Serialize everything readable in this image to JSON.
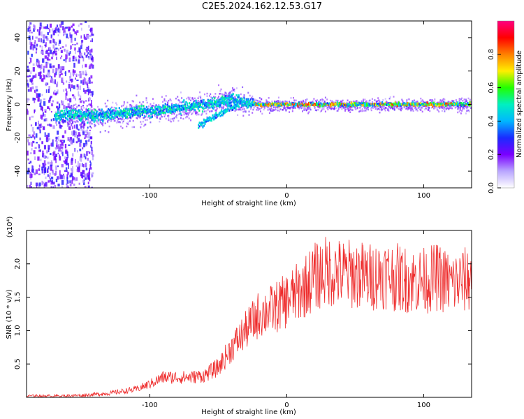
{
  "figure": {
    "title": "C2E5.2024.162.12.53.G17"
  },
  "colors": {
    "snr_line": "#ee2b2b",
    "colormap": [
      "#ffffff",
      "#b9a6ff",
      "#7a00ff",
      "#1a2bff",
      "#00b7ff",
      "#00f0c0",
      "#22ff00",
      "#ffee00",
      "#ff8000",
      "#ff0000",
      "#ff0080"
    ]
  },
  "chart_data": [
    {
      "type": "heatmap",
      "title": "",
      "xlabel": "Height of straight line (km)",
      "ylabel": "Frequency (Hz)",
      "xlim": [
        -190,
        135
      ],
      "ylim": [
        -50,
        50
      ],
      "x_ticks": [
        -100,
        0,
        100
      ],
      "y_ticks": [
        -40,
        -20,
        0,
        20,
        40
      ],
      "colorbar": {
        "label": "Normalized spectral amplitude",
        "range": [
          0.0,
          1.0
        ],
        "ticks": [
          0.0,
          0.2,
          0.4,
          0.6,
          0.8
        ]
      },
      "ridge": {
        "x": [
          -180,
          -160,
          -140,
          -120,
          -100,
          -80,
          -60,
          -40,
          -30,
          -20,
          0,
          20,
          40,
          60,
          80,
          100,
          120,
          130
        ],
        "y": [
          -8,
          -6,
          -7,
          -5,
          -4,
          -2,
          0,
          3,
          1,
          0,
          0,
          0,
          0,
          0,
          0,
          0,
          0,
          0
        ]
      }
    },
    {
      "type": "line",
      "title": "",
      "xlabel": "Height of straight line (km)",
      "ylabel": "SNR (10 * v/v)",
      "y_scale_note": "(x10⁴)",
      "xlim": [
        -190,
        135
      ],
      "ylim": [
        0,
        2.5
      ],
      "x_ticks": [
        -100,
        0,
        100
      ],
      "y_ticks": [
        0.5,
        1.0,
        1.5,
        2.0
      ],
      "series": [
        {
          "x": [
            -190,
            -170,
            -150,
            -130,
            -110,
            -100,
            -90,
            -80,
            -70,
            -60,
            -50,
            -40,
            -30,
            -20,
            -10,
            0,
            10,
            20,
            30,
            40,
            50,
            60,
            70,
            80,
            90,
            100,
            110,
            120,
            130,
            135
          ],
          "values": [
            0.02,
            0.02,
            0.03,
            0.06,
            0.12,
            0.2,
            0.3,
            0.3,
            0.3,
            0.33,
            0.45,
            0.75,
            1.0,
            1.25,
            1.32,
            1.45,
            1.6,
            1.8,
            1.9,
            1.85,
            1.85,
            1.8,
            1.85,
            1.8,
            1.75,
            1.75,
            1.8,
            1.7,
            1.75,
            1.8
          ]
        }
      ]
    }
  ]
}
